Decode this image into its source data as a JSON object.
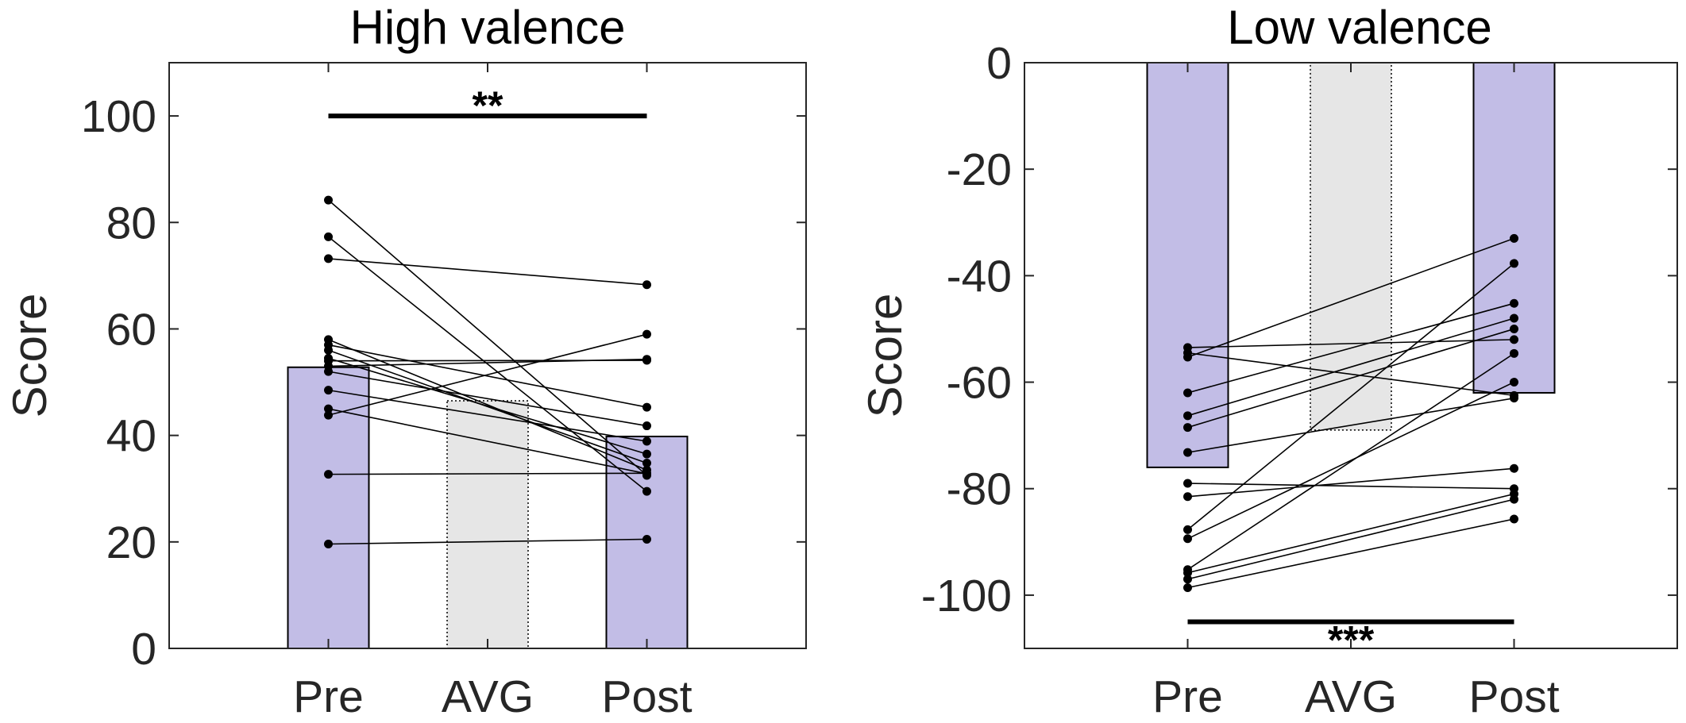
{
  "chart_data": [
    {
      "type": "bar",
      "title": "High valence",
      "xlabel": "",
      "ylabel": "Score",
      "ylim": [
        0,
        110
      ],
      "yticks": [
        0,
        20,
        40,
        60,
        80,
        100
      ],
      "categories": [
        "Pre",
        "AVG",
        "Post"
      ],
      "values": [
        52.8,
        46.5,
        39.8
      ],
      "bar_colors": [
        "#c2bde6",
        "#e6e6e6",
        "#c2bde6"
      ],
      "bar_styles": [
        "solid",
        "dotted",
        "solid"
      ],
      "paired_series": [
        {
          "pre": 84.2,
          "post": 32.5
        },
        {
          "pre": 77.3,
          "post": 29.5
        },
        {
          "pre": 73.2,
          "post": 68.3
        },
        {
          "pre": 58.0,
          "post": 33.5
        },
        {
          "pre": 57.0,
          "post": 45.3
        },
        {
          "pre": 56.0,
          "post": 34.8
        },
        {
          "pre": 54.5,
          "post": 36.5
        },
        {
          "pre": 54.0,
          "post": 54.1
        },
        {
          "pre": 53.0,
          "post": 54.3
        },
        {
          "pre": 52.0,
          "post": 41.8
        },
        {
          "pre": 48.5,
          "post": 38.9
        },
        {
          "pre": 45.0,
          "post": 32.8
        },
        {
          "pre": 43.8,
          "post": 59.0
        },
        {
          "pre": 32.7,
          "post": 32.9
        },
        {
          "pre": 19.6,
          "post": 20.5
        }
      ],
      "significance": {
        "label": "**",
        "y": 100
      }
    },
    {
      "type": "bar",
      "title": "Low valence",
      "xlabel": "",
      "ylabel": "Score",
      "ylim": [
        -110,
        0
      ],
      "yticks": [
        -100,
        -80,
        -60,
        -40,
        -20,
        0
      ],
      "categories": [
        "Pre",
        "AVG",
        "Post"
      ],
      "values": [
        -76,
        -69,
        -62
      ],
      "bar_colors": [
        "#c2bde6",
        "#e6e6e6",
        "#c2bde6"
      ],
      "bar_styles": [
        "solid",
        "dotted",
        "solid"
      ],
      "paired_series": [
        {
          "pre": -53.5,
          "post": -52.0
        },
        {
          "pre": -54.5,
          "post": -62.5
        },
        {
          "pre": -55.3,
          "post": -33.0
        },
        {
          "pre": -62.0,
          "post": -45.2
        },
        {
          "pre": -66.3,
          "post": -48.0
        },
        {
          "pre": -68.5,
          "post": -50.0
        },
        {
          "pre": -73.2,
          "post": -63.0
        },
        {
          "pre": -79.0,
          "post": -80.0
        },
        {
          "pre": -81.5,
          "post": -76.2
        },
        {
          "pre": -87.7,
          "post": -37.7
        },
        {
          "pre": -89.4,
          "post": -60.0
        },
        {
          "pre": -95.2,
          "post": -54.6
        },
        {
          "pre": -95.8,
          "post": -81.0
        },
        {
          "pre": -97.0,
          "post": -82.0
        },
        {
          "pre": -98.6,
          "post": -85.7
        }
      ],
      "significance": {
        "label": "***",
        "y": -105
      }
    }
  ]
}
